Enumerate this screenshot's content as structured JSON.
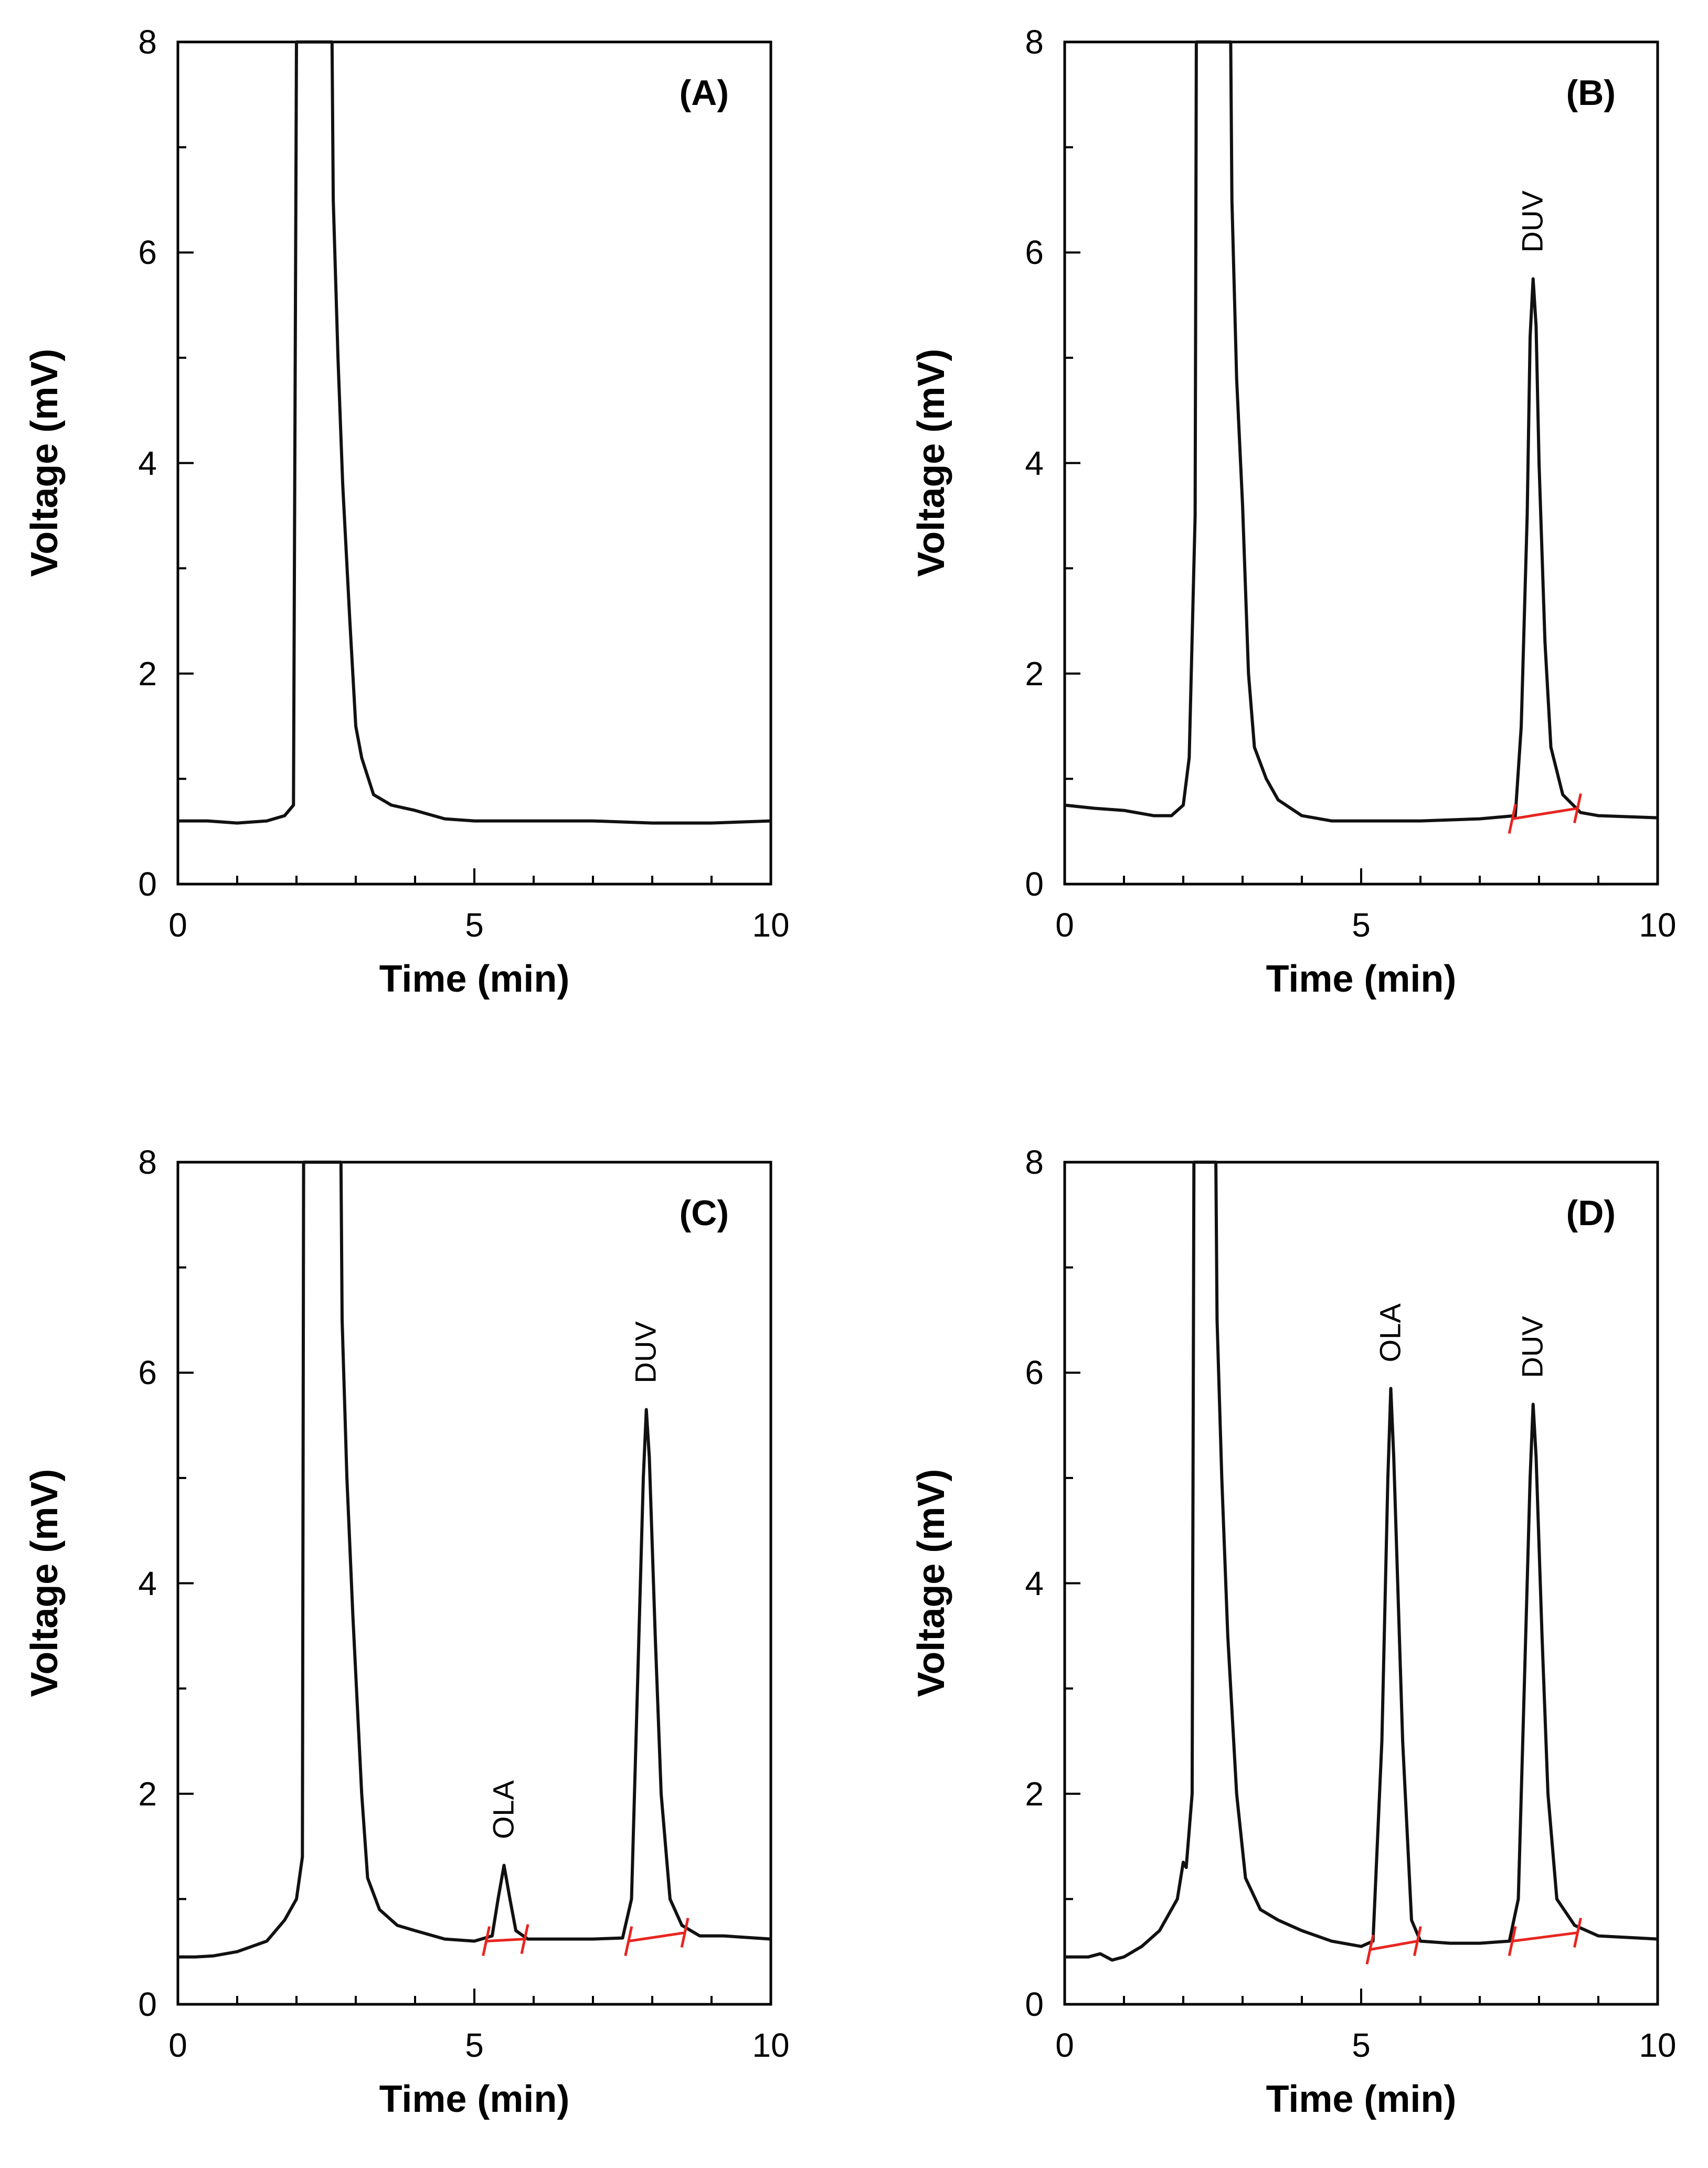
{
  "chart_data": [
    {
      "type": "line",
      "panel_label": "(A)",
      "xlabel": "Time (min)",
      "ylabel": "Voltage (mV)",
      "xlim": [
        0,
        10
      ],
      "ylim": [
        0,
        8
      ],
      "x_ticks": [
        "0",
        "5",
        "10"
      ],
      "y_ticks": [
        "0",
        "2",
        "4",
        "6",
        "8"
      ],
      "series": [
        {
          "name": "chromatogram",
          "x": [
            0,
            0.5,
            1.0,
            1.5,
            1.8,
            1.95,
            2.0,
            2.02,
            2.6,
            2.62,
            2.7,
            2.78,
            2.9,
            3.0,
            3.1,
            3.3,
            3.6,
            4.0,
            4.5,
            5.0,
            6.0,
            7.0,
            8.0,
            9.0,
            10.0
          ],
          "y": [
            0.6,
            0.6,
            0.58,
            0.6,
            0.65,
            0.75,
            8.0,
            8.0,
            8.0,
            6.5,
            5.0,
            3.8,
            2.5,
            1.5,
            1.2,
            0.85,
            0.75,
            0.7,
            0.62,
            0.6,
            0.6,
            0.6,
            0.58,
            0.58,
            0.6
          ]
        }
      ],
      "peak_labels": [],
      "baselines": []
    },
    {
      "type": "line",
      "panel_label": "(B)",
      "xlabel": "Time (min)",
      "ylabel": "Voltage (mV)",
      "xlim": [
        0,
        10
      ],
      "ylim": [
        0,
        8
      ],
      "x_ticks": [
        "0",
        "5",
        "10"
      ],
      "y_ticks": [
        "0",
        "2",
        "4",
        "6",
        "8"
      ],
      "series": [
        {
          "name": "chromatogram",
          "x": [
            0,
            0.5,
            1.0,
            1.5,
            1.8,
            2.0,
            2.1,
            2.2,
            2.22,
            2.8,
            2.82,
            2.9,
            3.0,
            3.1,
            3.2,
            3.4,
            3.6,
            4.0,
            4.5,
            5.0,
            6.0,
            7.0,
            7.6,
            7.7,
            7.8,
            7.85,
            7.9,
            7.95,
            8.0,
            8.1,
            8.2,
            8.4,
            8.7,
            9.0,
            10.0
          ],
          "y": [
            0.75,
            0.72,
            0.7,
            0.65,
            0.65,
            0.75,
            1.2,
            3.5,
            8.0,
            8.0,
            6.5,
            4.8,
            3.6,
            2.0,
            1.3,
            1.0,
            0.8,
            0.65,
            0.6,
            0.6,
            0.6,
            0.62,
            0.65,
            1.5,
            3.5,
            5.2,
            5.75,
            5.3,
            4.0,
            2.3,
            1.3,
            0.85,
            0.68,
            0.65,
            0.63
          ]
        }
      ],
      "peak_labels": [
        {
          "text": "DUV",
          "x": 7.9,
          "y": 5.75
        }
      ],
      "baselines": [
        {
          "x": [
            7.55,
            8.65
          ],
          "y": [
            0.62,
            0.72
          ]
        }
      ]
    },
    {
      "type": "line",
      "panel_label": "(C)",
      "xlabel": "Time (min)",
      "ylabel": "Voltage (mV)",
      "xlim": [
        0,
        10
      ],
      "ylim": [
        0,
        8
      ],
      "x_ticks": [
        "0",
        "5",
        "10"
      ],
      "y_ticks": [
        "0",
        "2",
        "4",
        "6",
        "8"
      ],
      "series": [
        {
          "name": "chromatogram",
          "x": [
            0,
            0.3,
            0.6,
            1.0,
            1.5,
            1.8,
            2.0,
            2.1,
            2.12,
            2.75,
            2.77,
            2.85,
            2.95,
            3.1,
            3.2,
            3.4,
            3.7,
            4.0,
            4.5,
            5.0,
            5.3,
            5.4,
            5.5,
            5.6,
            5.7,
            5.9,
            6.5,
            7.0,
            7.5,
            7.65,
            7.75,
            7.85,
            7.9,
            7.95,
            8.05,
            8.15,
            8.3,
            8.5,
            8.8,
            9.2,
            10.0
          ],
          "y": [
            0.45,
            0.45,
            0.46,
            0.5,
            0.6,
            0.8,
            1.0,
            1.4,
            8.0,
            8.0,
            6.5,
            5.0,
            3.7,
            2.0,
            1.2,
            0.9,
            0.75,
            0.7,
            0.62,
            0.6,
            0.65,
            1.0,
            1.32,
            1.0,
            0.7,
            0.62,
            0.62,
            0.62,
            0.63,
            1.0,
            3.0,
            5.0,
            5.65,
            5.2,
            3.5,
            2.0,
            1.0,
            0.75,
            0.65,
            0.65,
            0.62
          ]
        }
      ],
      "peak_labels": [
        {
          "text": "OLA",
          "x": 5.5,
          "y": 1.32
        },
        {
          "text": "DUV",
          "x": 7.9,
          "y": 5.65
        }
      ],
      "baselines": [
        {
          "x": [
            5.2,
            5.85
          ],
          "y": [
            0.6,
            0.62
          ]
        },
        {
          "x": [
            7.6,
            8.55
          ],
          "y": [
            0.6,
            0.68
          ]
        }
      ]
    },
    {
      "type": "line",
      "panel_label": "(D)",
      "xlabel": "Time (min)",
      "ylabel": "Voltage (mV)",
      "xlim": [
        0,
        10
      ],
      "ylim": [
        0,
        8
      ],
      "x_ticks": [
        "0",
        "5",
        "10"
      ],
      "y_ticks": [
        "0",
        "2",
        "4",
        "6",
        "8"
      ],
      "series": [
        {
          "name": "chromatogram",
          "x": [
            0,
            0.4,
            0.6,
            0.8,
            1.0,
            1.3,
            1.6,
            1.9,
            2.0,
            2.05,
            2.15,
            2.18,
            2.55,
            2.57,
            2.65,
            2.75,
            2.9,
            3.05,
            3.3,
            3.6,
            4.0,
            4.5,
            5.0,
            5.2,
            5.35,
            5.45,
            5.5,
            5.55,
            5.7,
            5.85,
            6.0,
            6.5,
            7.0,
            7.5,
            7.65,
            7.75,
            7.85,
            7.9,
            7.95,
            8.05,
            8.15,
            8.3,
            8.6,
            9.0,
            10.0
          ],
          "y": [
            0.45,
            0.45,
            0.48,
            0.42,
            0.45,
            0.55,
            0.7,
            1.0,
            1.35,
            1.3,
            2.0,
            8.0,
            8.0,
            6.5,
            5.0,
            3.5,
            2.0,
            1.2,
            0.9,
            0.8,
            0.7,
            0.6,
            0.55,
            0.6,
            2.5,
            5.0,
            5.85,
            5.2,
            2.5,
            0.8,
            0.6,
            0.58,
            0.58,
            0.6,
            1.0,
            3.0,
            5.0,
            5.7,
            5.2,
            3.5,
            2.0,
            1.0,
            0.75,
            0.65,
            0.62
          ]
        }
      ],
      "peak_labels": [
        {
          "text": "OLA",
          "x": 5.5,
          "y": 5.85
        },
        {
          "text": "DUV",
          "x": 7.9,
          "y": 5.7
        }
      ],
      "baselines": [
        {
          "x": [
            5.15,
            5.95
          ],
          "y": [
            0.52,
            0.6
          ]
        },
        {
          "x": [
            7.55,
            8.65
          ],
          "y": [
            0.6,
            0.68
          ]
        }
      ]
    }
  ]
}
